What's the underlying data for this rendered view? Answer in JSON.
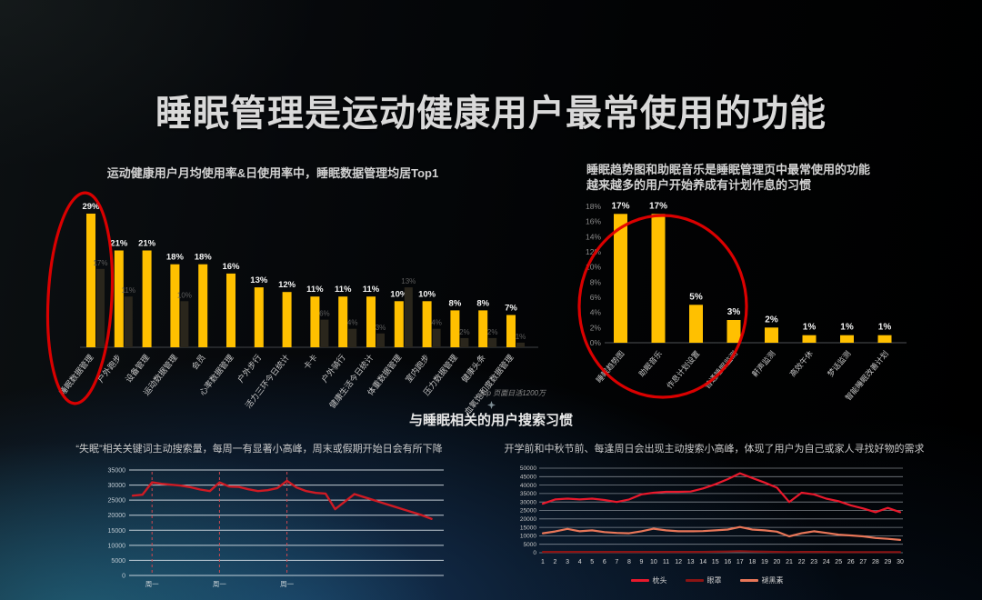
{
  "title": "睡眠管理是运动健康用户最常使用的功能",
  "section_title": "与睡眠相关的用户搜索习惯",
  "left_panel": {
    "subtitle": "运动健康用户月均使用率&日使用率中，睡眠数据管理均居Top1",
    "footnote": "Top 页面日活1200万"
  },
  "right_panel": {
    "subtitle_line1": "睡眠趋势图和助眠音乐是睡眠管理页中最常使用的功能",
    "subtitle_line2": "越来越多的用户开始养成有计划作息的习惯"
  },
  "bottom_left_panel": {
    "caption": "“失眠”相关关键词主动搜索量，每周一有显著小高峰，周末或假期开始日会有所下降"
  },
  "bottom_right_panel": {
    "caption": "开学前和中秋节前、每逢周日会出现主动搜索小高峰，体现了用户为自己或家人寻找好物的需求"
  },
  "colors": {
    "bar_amber": "#FFC000",
    "bar_dark": "#2A261C",
    "annotation_red": "#E60000",
    "line_red": "#CE1B24",
    "line_bright_red": "#E8192C",
    "line_dark_red": "#8B1414",
    "line_salmon": "#E87658"
  },
  "chart_data": [
    {
      "id": "usage-rate-bar",
      "type": "bar",
      "title": "运动健康用户月均使用率&日使用率中，睡眠数据管理均居Top1",
      "categories": [
        "睡眠数据管理",
        "户外跑步",
        "设备管理",
        "运动数据管理",
        "会员",
        "心率数据管理",
        "户外步行",
        "活力三环今日统计",
        "卡卡",
        "户外骑行",
        "健康生活今日统计",
        "体重数据管理",
        "室内跑步",
        "压力数据管理",
        "健康头条",
        "血氧饱和度数据管理"
      ],
      "series": [
        {
          "name": "月均使用率",
          "color": "#FFC000",
          "values": [
            29,
            21,
            21,
            18,
            18,
            16,
            13,
            12,
            11,
            11,
            11,
            10,
            10,
            8,
            8,
            7
          ],
          "labels": [
            "29%",
            "21%",
            "21%",
            "18%",
            "18%",
            "16%",
            "13%",
            "12%",
            "11%",
            "11%",
            "11%",
            "10%",
            "10%",
            "8%",
            "8%",
            "7%"
          ]
        },
        {
          "name": "日使用率",
          "color": "#2A261C",
          "values": [
            17,
            11,
            null,
            10,
            null,
            null,
            null,
            null,
            6,
            4,
            3,
            13,
            4,
            2,
            2,
            1
          ],
          "labels": [
            "17%",
            "11%",
            null,
            "10%",
            null,
            null,
            null,
            null,
            "6%",
            "4%",
            "3%",
            "13%",
            "4%",
            "2%",
            "2%",
            "1%"
          ]
        }
      ],
      "ylim": [
        0,
        32
      ],
      "annotation": {
        "shape": "ellipse",
        "target": "睡眠数据管理",
        "color": "#E60000"
      }
    },
    {
      "id": "sleep-page-features-bar",
      "type": "bar",
      "title": "睡眠趋势图和助眠音乐是睡眠管理页中最常使用的功能",
      "categories": [
        "睡眠趋势图",
        "助眠音乐",
        "作息计划设置",
        "普通睡眠监测",
        "鼾声监测",
        "高效午休",
        "梦话监测",
        "智能睡眠改善计划"
      ],
      "values": [
        17,
        17,
        5,
        3,
        2,
        1,
        1,
        1
      ],
      "labels": [
        "17%",
        "17%",
        "5%",
        "3%",
        "2%",
        "1%",
        "1%",
        "1%"
      ],
      "bar_color": "#FFC000",
      "ylim": [
        0,
        18
      ],
      "yticks": [
        "0%",
        "2%",
        "4%",
        "6%",
        "8%",
        "10%",
        "12%",
        "14%",
        "16%",
        "18%"
      ],
      "annotation": {
        "shape": "ellipse",
        "targets": [
          "睡眠趋势图",
          "助眠音乐",
          "作息计划设置",
          "普通睡眠监测"
        ],
        "color": "#E60000"
      }
    },
    {
      "id": "insomnia-search-line",
      "type": "line",
      "title": "“失眠”相关关键词主动搜索量",
      "ylim": [
        0,
        35000
      ],
      "ytick_step": 5000,
      "yticks": [
        "0",
        "5000",
        "10000",
        "15000",
        "20000",
        "25000",
        "30000",
        "35000"
      ],
      "x_markers": {
        "label": "周一",
        "indices": [
          2,
          9,
          16
        ]
      },
      "line_color": "#CE1B24",
      "marker_line_color": "#D0484F",
      "values": [
        26500,
        26800,
        30900,
        30400,
        30100,
        29800,
        29300,
        28500,
        28000,
        30900,
        29500,
        29400,
        28600,
        28000,
        28300,
        29000,
        31400,
        29200,
        28000,
        27400,
        27200,
        22000,
        24500,
        27000,
        26000,
        25000,
        24000,
        23000,
        22000,
        21000,
        20000,
        18800
      ]
    },
    {
      "id": "product-search-line",
      "type": "line",
      "title": "与睡眠相关的用户搜索习惯",
      "ylim": [
        0,
        50000
      ],
      "ytick_step": 5000,
      "yticks": [
        "0",
        "5000",
        "10000",
        "15000",
        "20000",
        "25000",
        "30000",
        "35000",
        "40000",
        "45000",
        "50000"
      ],
      "x_labels": [
        "1",
        "2",
        "3",
        "4",
        "5",
        "6",
        "7",
        "8",
        "9",
        "10",
        "11",
        "12",
        "13",
        "14",
        "15",
        "16",
        "17",
        "18",
        "19",
        "20",
        "21",
        "22",
        "23",
        "24",
        "25",
        "26",
        "27",
        "28",
        "29",
        "30"
      ],
      "legend_position": "bottom",
      "series": [
        {
          "name": "枕头",
          "color": "#E8192C",
          "values": [
            29000,
            31500,
            32000,
            31500,
            32000,
            31200,
            30000,
            31500,
            34500,
            35500,
            36000,
            36000,
            36200,
            38000,
            40500,
            43500,
            47000,
            44200,
            41500,
            38500,
            30000,
            35500,
            34500,
            32000,
            30500,
            28000,
            26200,
            24000,
            26500,
            24000
          ]
        },
        {
          "name": "眼罩",
          "color": "#8B1414",
          "values": [
            500,
            500,
            500,
            500,
            500,
            500,
            500,
            500,
            500,
            500,
            500,
            500,
            500,
            500,
            600,
            700,
            900,
            700,
            600,
            500,
            400,
            500,
            500,
            500,
            400,
            400,
            400,
            400,
            400,
            400
          ]
        },
        {
          "name": "褪黑素",
          "color": "#E87658",
          "values": [
            11500,
            12600,
            14100,
            12700,
            13200,
            12200,
            11700,
            11500,
            12700,
            14200,
            13200,
            12700,
            12700,
            12800,
            13200,
            13700,
            15200,
            13700,
            13200,
            12500,
            9700,
            11500,
            12700,
            11700,
            10700,
            10200,
            9700,
            8700,
            8200,
            7600
          ]
        }
      ]
    }
  ]
}
